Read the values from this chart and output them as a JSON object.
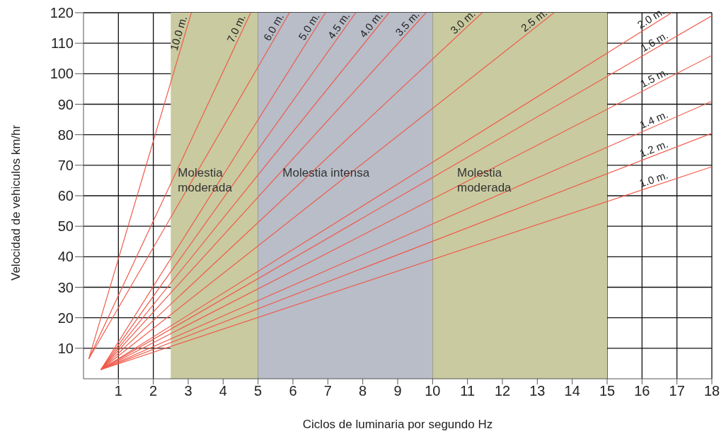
{
  "chart_data": {
    "type": "line",
    "xlabel": "Ciclos de luminaria  por segundo  Hz",
    "ylabel": "Velocidad de vehiculos km/hr",
    "xlim": [
      0,
      18
    ],
    "xticks": [
      1,
      2,
      3,
      4,
      5,
      6,
      7,
      8,
      9,
      10,
      11,
      12,
      13,
      14,
      15,
      16,
      17,
      18
    ],
    "ylim": [
      0,
      120
    ],
    "yticks": [
      10,
      20,
      30,
      40,
      50,
      60,
      70,
      80,
      90,
      100,
      110,
      120
    ],
    "grid": true,
    "legend": false,
    "marker": "none",
    "line_style": "solid",
    "bands": [
      {
        "axis": "x",
        "from": 2.5,
        "to": 5,
        "label": "Molestia moderada",
        "color": "#c9caa0"
      },
      {
        "axis": "x",
        "from": 5,
        "to": 10,
        "label": "Molestia intensa",
        "color": "#b8bdc8"
      },
      {
        "axis": "x",
        "from": 10,
        "to": 15,
        "label": "Molestia moderada",
        "color": "#c9caa0"
      }
    ],
    "series": [
      {
        "name": "10.0 m.",
        "color": "#f05a4a",
        "x": [
          0.15,
          3.09
        ],
        "values": [
          6.5,
          120
        ]
      },
      {
        "name": "7.0 m.",
        "color": "#f05a4a",
        "x": [
          0.15,
          4.79
        ],
        "values": [
          6.5,
          120
        ]
      },
      {
        "name": "6.0 m.",
        "color": "#f05a4a",
        "x": [
          0.15,
          5.9
        ],
        "values": [
          6.5,
          120
        ]
      },
      {
        "name": "5.0 m.",
        "color": "#f05a4a",
        "x": [
          0.5,
          6.93
        ],
        "values": [
          3,
          120
        ]
      },
      {
        "name": "4.5 m.",
        "color": "#f05a4a",
        "x": [
          0.5,
          7.8
        ],
        "values": [
          3,
          120
        ]
      },
      {
        "name": "4.0 m.",
        "color": "#f05a4a",
        "x": [
          0.5,
          8.75
        ],
        "values": [
          3,
          120
        ]
      },
      {
        "name": "3.5 m.",
        "color": "#f05a4a",
        "x": [
          0.5,
          9.81
        ],
        "values": [
          3,
          120
        ]
      },
      {
        "name": "3.0 m.",
        "color": "#f05a4a",
        "x": [
          0.5,
          11.42
        ],
        "values": [
          3,
          120
        ]
      },
      {
        "name": "2.5 m.",
        "color": "#f05a4a",
        "x": [
          0.5,
          13.48
        ],
        "values": [
          3,
          120
        ]
      },
      {
        "name": "2.0 m.",
        "color": "#f05a4a",
        "x": [
          0.5,
          16.85
        ],
        "values": [
          3,
          120
        ]
      },
      {
        "name": "1.6 m.",
        "color": "#f05a4a",
        "x": [
          0.5,
          18
        ],
        "values": [
          3,
          119
        ]
      },
      {
        "name": "1.5 m.",
        "color": "#f05a4a",
        "x": [
          0.5,
          18
        ],
        "values": [
          3,
          106
        ]
      },
      {
        "name": "1.4 m.",
        "color": "#f05a4a",
        "x": [
          0.5,
          18
        ],
        "values": [
          3,
          91
        ]
      },
      {
        "name": "1.2 m.",
        "color": "#f05a4a",
        "x": [
          0.5,
          18
        ],
        "values": [
          3,
          80.5
        ]
      },
      {
        "name": "1.0 m.",
        "color": "#f05a4a",
        "x": [
          0.5,
          18
        ],
        "values": [
          3,
          69.5
        ]
      }
    ]
  }
}
